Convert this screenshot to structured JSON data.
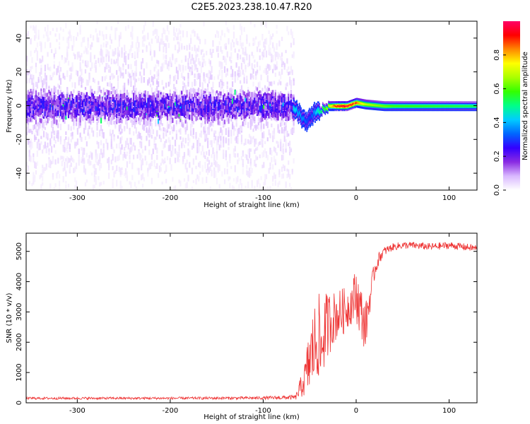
{
  "title": "C2E5.2023.238.10.47.R20",
  "chart_data": [
    {
      "type": "heatmap",
      "panel": "spectrogram",
      "xlabel": "Height of straight line (km)",
      "ylabel": "Frequency (Hz)",
      "xlim": [
        -355,
        130
      ],
      "ylim": [
        -50,
        50
      ],
      "xticks": [
        -300,
        -200,
        -100,
        0,
        100
      ],
      "xtick_labels": [
        "-300",
        "-200",
        "-100",
        "0",
        "100"
      ],
      "yticks": [
        -40,
        -20,
        0,
        20,
        40
      ],
      "ytick_labels": [
        "-40",
        "-20",
        "0",
        "20",
        "40"
      ],
      "colorbar": {
        "label": "Normalized spectral amplitude",
        "range": [
          0,
          1
        ],
        "ticks": [
          0.0,
          0.2,
          0.4,
          0.6,
          0.8
        ],
        "tick_labels": [
          "0.0",
          "0.2",
          "0.4",
          "0.6",
          "0.8"
        ],
        "colormap": [
          "#ffffff",
          "#d9b8ff",
          "#8a2be2",
          "#3300ff",
          "#0066ff",
          "#00ccff",
          "#00ff88",
          "#33ff00",
          "#aaff00",
          "#ffff00",
          "#ff8800",
          "#ff0000",
          "#ff0066"
        ]
      },
      "regions": [
        {
          "x_range": [
            -355,
            -68
          ],
          "description_level": "noise",
          "core_band_hz": [
            -12,
            12
          ],
          "core_amplitude": 0.2,
          "halo_hz": [
            -50,
            50
          ],
          "halo_amplitude": 0.05
        },
        {
          "x_range": [
            -68,
            130
          ],
          "description_level": "signal",
          "signal_track": [
            {
              "x": -68,
              "y": 0
            },
            {
              "x": -62,
              "y": -4
            },
            {
              "x": -55,
              "y": -9
            },
            {
              "x": -50,
              "y": -7
            },
            {
              "x": -45,
              "y": -4
            },
            {
              "x": -38,
              "y": -2
            },
            {
              "x": -30,
              "y": 0
            },
            {
              "x": -20,
              "y": 0
            },
            {
              "x": -10,
              "y": 0
            },
            {
              "x": 0,
              "y": 2
            },
            {
              "x": 10,
              "y": 1
            },
            {
              "x": 30,
              "y": 0
            },
            {
              "x": 60,
              "y": 0
            },
            {
              "x": 100,
              "y": 0
            },
            {
              "x": 130,
              "y": 0
            }
          ],
          "track_amplitude": [
            {
              "x": -68,
              "a": 0.45
            },
            {
              "x": -50,
              "a": 0.3
            },
            {
              "x": -35,
              "a": 0.6
            },
            {
              "x": -20,
              "a": 0.95
            },
            {
              "x": -5,
              "a": 0.95
            },
            {
              "x": 10,
              "a": 0.7
            },
            {
              "x": 40,
              "a": 0.6
            },
            {
              "x": 130,
              "a": 0.55
            }
          ]
        }
      ]
    },
    {
      "type": "line",
      "panel": "snr",
      "xlabel": "Height of straight line (km)",
      "ylabel": "SNR (10 * v/v)",
      "xlim": [
        -355,
        130
      ],
      "ylim": [
        0,
        5600
      ],
      "xticks": [
        -300,
        -200,
        -100,
        0,
        100
      ],
      "xtick_labels": [
        "-300",
        "-200",
        "-100",
        "0",
        "100"
      ],
      "yticks": [
        0,
        1000,
        2000,
        3000,
        4000,
        5000
      ],
      "ytick_labels": [
        "0",
        "1000",
        "2000",
        "3000",
        "4000",
        "5000"
      ],
      "series": [
        {
          "color": "#ee3333",
          "x": [
            -355,
            -300,
            -200,
            -100,
            -65,
            -55,
            -50,
            -45,
            -40,
            -38,
            -35,
            -30,
            -25,
            -20,
            -15,
            -10,
            -5,
            0,
            5,
            10,
            15,
            20,
            25,
            30,
            40,
            50,
            60,
            80,
            100,
            130
          ],
          "y": [
            150,
            150,
            150,
            160,
            180,
            800,
            1400,
            1900,
            2200,
            1600,
            2300,
            2600,
            2800,
            2900,
            3000,
            3100,
            3300,
            3600,
            3000,
            2500,
            3500,
            4400,
            4800,
            5000,
            5150,
            5200,
            5200,
            5150,
            5200,
            5100
          ],
          "noise_amplitude": [
            40,
            40,
            40,
            50,
            80,
            600,
            1200,
            1400,
            1400,
            1400,
            1300,
            1100,
            900,
            800,
            800,
            700,
            700,
            900,
            900,
            800,
            500,
            300,
            200,
            150,
            120,
            120,
            120,
            120,
            120,
            120
          ]
        }
      ]
    }
  ]
}
